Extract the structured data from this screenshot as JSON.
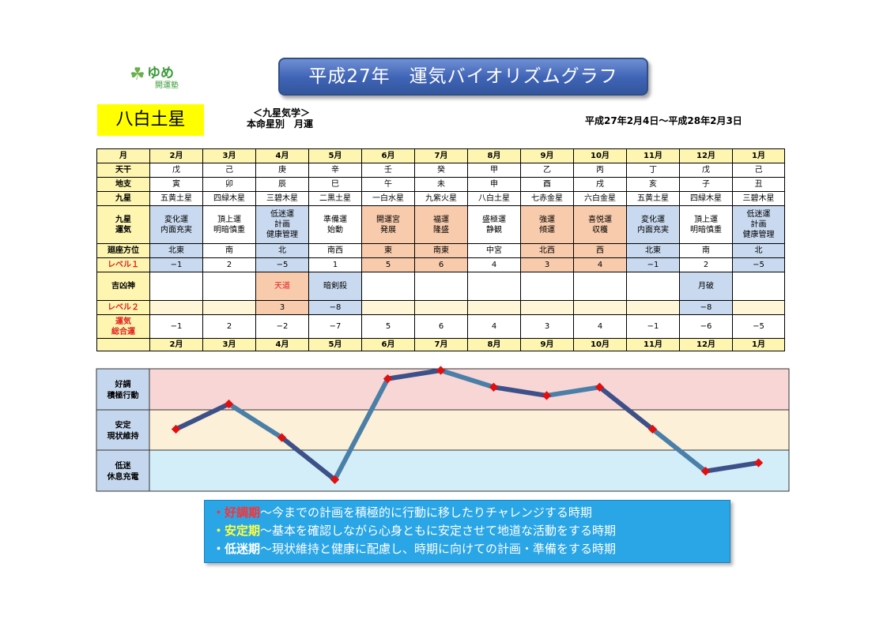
{
  "logo": {
    "name": "ゆめ",
    "sub": "開運塾"
  },
  "title": "平成27年　運気バイオリズムグラフ",
  "star": "八白土星",
  "kyusei_line1": "＜九星気学＞",
  "kyusei_line2": "本命星別　月運",
  "period": "平成27年2月4日～平成28年2月3日",
  "labels": {
    "month": "月",
    "tenkan": "天干",
    "chishi": "地支",
    "kyusei": "九星",
    "unki": "九星\n運気",
    "kaiza": "廻座方位",
    "level1": "レベル１",
    "kikkyo": "吉凶神",
    "level2": "レベル２",
    "total": "運気\n総合運"
  },
  "months": [
    "2月",
    "3月",
    "4月",
    "5月",
    "6月",
    "7月",
    "8月",
    "9月",
    "10月",
    "11月",
    "12月",
    "1月"
  ],
  "tenkan": [
    "戊",
    "己",
    "庚",
    "辛",
    "壬",
    "癸",
    "甲",
    "乙",
    "丙",
    "丁",
    "戊",
    "己"
  ],
  "chishi": [
    "寅",
    "卯",
    "辰",
    "巳",
    "午",
    "未",
    "申",
    "酉",
    "戌",
    "亥",
    "子",
    "丑"
  ],
  "kyusei_stars": [
    "五黄土星",
    "四緑木星",
    "三碧木星",
    "二黒土星",
    "一白水星",
    "九紫火星",
    "八白土星",
    "七赤金星",
    "六白金星",
    "五黄土星",
    "四緑木星",
    "三碧木星"
  ],
  "unki": [
    "変化運\n内面充実",
    "頂上運\n明暗慎重",
    "低迷運\n計画\n健康管理",
    "準備運\n始動",
    "開運宮\n発展",
    "福運\n隆盛",
    "盛極運\n静観",
    "強運\n傾運",
    "喜悦運\n収穫",
    "変化運\n内面充実",
    "頂上運\n明暗慎重",
    "低迷運\n計画\n健康管理"
  ],
  "kaiza": [
    "北東",
    "南",
    "北",
    "南西",
    "東",
    "南東",
    "中宮",
    "北西",
    "西",
    "北東",
    "南",
    "北"
  ],
  "level1": [
    "−1",
    "2",
    "−5",
    "1",
    "5",
    "6",
    "4",
    "3",
    "4",
    "−1",
    "2",
    "−5"
  ],
  "kikkyo": [
    "",
    "",
    "天道",
    "暗剣殺",
    "",
    "",
    "",
    "",
    "",
    "",
    "月破",
    ""
  ],
  "level2": [
    "",
    "",
    "3",
    "−8",
    "",
    "",
    "",
    "",
    "",
    "",
    "−8",
    ""
  ],
  "total": [
    "−1",
    "2",
    "−2",
    "−7",
    "5",
    "6",
    "4",
    "3",
    "4",
    "−1",
    "−6",
    "−5"
  ],
  "zones": {
    "good": "好調\n積極行動",
    "stable": "安定\n現状維持",
    "low": "低迷\n休息充電"
  },
  "legend": [
    {
      "mark": "・",
      "keyword": "好調期",
      "text": "～今までの計画を積極的に行動に移したりチャレンジする時期"
    },
    {
      "mark": "・",
      "keyword": "安定期",
      "text": "～基本を確認しながら心身ともに安定させて地道な活動をする時期"
    },
    {
      "mark": "・",
      "keyword": "低迷期",
      "text": "～現状維持と健康に配慮し、時期に向けての計画・準備をする時期"
    }
  ],
  "chart_data": {
    "type": "line",
    "categories": [
      "2月",
      "3月",
      "4月",
      "5月",
      "6月",
      "7月",
      "8月",
      "9月",
      "10月",
      "11月",
      "12月",
      "1月"
    ],
    "series": [
      {
        "values": [
          -1,
          2,
          -2,
          -7,
          5,
          6,
          4,
          3,
          4,
          -1,
          -6,
          -5
        ]
      }
    ],
    "ylim": [
      -8,
      6
    ],
    "bands": [
      "好調 積極行動",
      "安定 現状維持",
      "低迷 休息充電"
    ],
    "colors": {
      "line": "#3d5088",
      "line_alt": "#4a7fa8",
      "marker": "#e01010",
      "good_band": "#f9d6d6",
      "stable_band": "#fdf0d8",
      "low_band": "#d4eef9",
      "label_col": "#c5d7ee"
    }
  }
}
